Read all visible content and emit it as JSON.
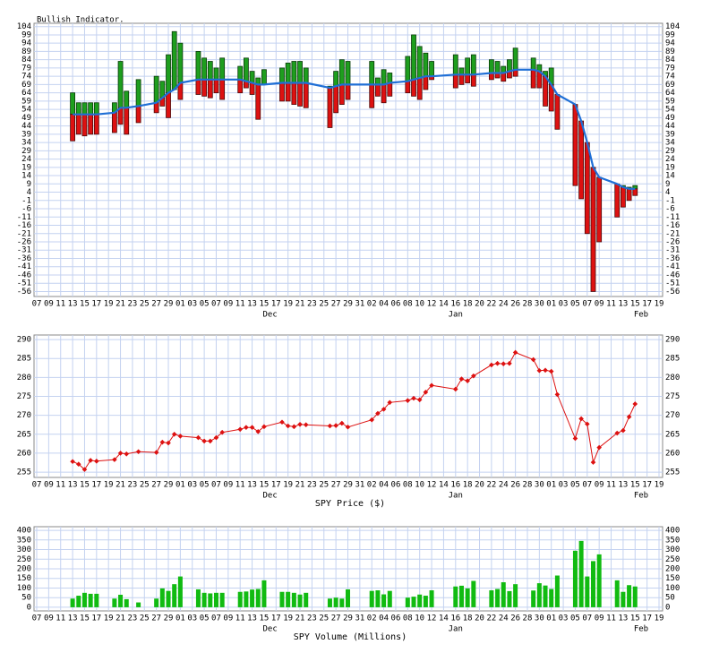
{
  "chart_data": [
    {
      "type": "rangebar",
      "title": "Bullish Indicator.",
      "categories": [
        "07",
        null,
        "09",
        null,
        "11",
        null,
        "13",
        null,
        "15",
        null,
        "17",
        null,
        "19",
        null,
        "21",
        null,
        "23",
        null,
        "25",
        null,
        "27",
        null,
        "29",
        null,
        "01",
        null,
        "03",
        null,
        "05",
        null,
        "07",
        null,
        "09",
        null,
        "11",
        null,
        "13",
        null,
        "15",
        null,
        "17",
        null,
        "19",
        null,
        "21",
        null,
        "23",
        null,
        "25",
        null,
        "27",
        null,
        "29",
        null,
        "31",
        null,
        "02",
        null,
        "04",
        null,
        "06",
        null,
        "08",
        null,
        "10",
        null,
        "12",
        null,
        "14",
        null,
        "16",
        null,
        "18",
        null,
        "20",
        null,
        "22",
        null,
        "24",
        null,
        "26",
        null,
        "28",
        null,
        "30",
        null,
        "01",
        null,
        "03",
        null,
        "05",
        null,
        "07",
        null,
        "09",
        null,
        "11",
        null,
        "13",
        null,
        "15",
        null,
        "17",
        null,
        "19"
      ],
      "month_labels": [
        "Dec",
        "Jan",
        "Feb"
      ],
      "line_color": "#1f6fd6",
      "up_color": "#1e9e1e",
      "down_color": "#dd1111",
      "line_values": [
        null,
        null,
        null,
        null,
        null,
        null,
        51,
        51,
        51,
        51,
        51,
        null,
        null,
        52,
        55,
        55,
        null,
        56,
        null,
        null,
        58,
        61,
        64,
        66,
        70,
        null,
        null,
        72,
        72,
        72,
        72,
        72,
        null,
        null,
        72,
        71,
        70,
        69,
        69,
        null,
        null,
        70,
        70,
        70,
        70,
        70,
        null,
        null,
        null,
        67,
        68,
        69,
        69,
        null,
        null,
        null,
        69,
        69,
        69,
        70,
        null,
        null,
        71,
        72,
        73,
        74,
        74,
        null,
        null,
        null,
        75,
        75,
        75,
        75,
        null,
        null,
        76,
        76,
        76,
        77,
        78,
        null,
        null,
        78,
        77,
        74,
        69,
        63,
        null,
        null,
        57,
        47,
        34,
        19,
        13,
        null,
        null,
        9,
        7,
        6,
        6,
        null,
        null,
        null,
        null
      ],
      "high_values": [
        null,
        null,
        null,
        null,
        null,
        null,
        64,
        58,
        58,
        58,
        58,
        null,
        null,
        58,
        83,
        65,
        null,
        72,
        null,
        null,
        74,
        71,
        87,
        101,
        94,
        null,
        null,
        89,
        85,
        83,
        79,
        85,
        null,
        null,
        80,
        85,
        77,
        73,
        78,
        null,
        null,
        79,
        82,
        83,
        83,
        79,
        null,
        null,
        null,
        68,
        77,
        84,
        83,
        null,
        null,
        null,
        83,
        73,
        78,
        76,
        null,
        null,
        86,
        99,
        92,
        88,
        83,
        null,
        null,
        null,
        87,
        79,
        85,
        87,
        null,
        null,
        84,
        83,
        80,
        84,
        91,
        null,
        null,
        85,
        81,
        77,
        79,
        63,
        null,
        null,
        57,
        47,
        34,
        19,
        13,
        null,
        null,
        9,
        8,
        7,
        8,
        null,
        null,
        null,
        null
      ],
      "low_values": [
        null,
        null,
        null,
        null,
        null,
        null,
        35,
        39,
        38,
        39,
        39,
        null,
        null,
        40,
        45,
        39,
        null,
        46,
        null,
        null,
        52,
        56,
        49,
        66,
        60,
        null,
        null,
        63,
        62,
        61,
        64,
        60,
        null,
        null,
        64,
        67,
        63,
        48,
        69,
        null,
        null,
        59,
        59,
        57,
        56,
        55,
        null,
        null,
        null,
        43,
        52,
        57,
        60,
        null,
        null,
        null,
        55,
        62,
        58,
        62,
        null,
        null,
        64,
        62,
        60,
        66,
        72,
        null,
        null,
        null,
        67,
        69,
        70,
        68,
        null,
        null,
        72,
        73,
        71,
        73,
        74,
        null,
        null,
        67,
        67,
        56,
        53,
        42,
        null,
        null,
        8,
        0,
        -21,
        -56,
        -26,
        null,
        null,
        -11,
        -5,
        -1,
        2,
        null,
        null,
        null,
        null
      ],
      "ylim": [
        -59,
        106
      ],
      "yticks": [
        -56,
        -51,
        -46,
        -41,
        -36,
        -31,
        -26,
        -21,
        -16,
        -11,
        -6,
        -1,
        4,
        9,
        14,
        19,
        24,
        29,
        34,
        39,
        44,
        49,
        54,
        59,
        64,
        69,
        74,
        79,
        84,
        89,
        94,
        99,
        104
      ],
      "grid": true
    },
    {
      "type": "line",
      "x_label": "SPY Price ($)",
      "color": "#dd1111",
      "categories": [
        "07",
        null,
        "09",
        null,
        "11",
        null,
        "13",
        null,
        "15",
        null,
        "17",
        null,
        "19",
        null,
        "21",
        null,
        "23",
        null,
        "25",
        null,
        "27",
        null,
        "29",
        null,
        "01",
        null,
        "03",
        null,
        "05",
        null,
        "07",
        null,
        "09",
        null,
        "11",
        null,
        "13",
        null,
        "15",
        null,
        "17",
        null,
        "19",
        null,
        "21",
        null,
        "23",
        null,
        "25",
        null,
        "27",
        null,
        "29",
        null,
        "31",
        null,
        "02",
        null,
        "04",
        null,
        "06",
        null,
        "08",
        null,
        "10",
        null,
        "12",
        null,
        "14",
        null,
        "16",
        null,
        "18",
        null,
        "20",
        null,
        "22",
        null,
        "24",
        null,
        "26",
        null,
        "28",
        null,
        "30",
        null,
        "01",
        null,
        "03",
        null,
        "05",
        null,
        "07",
        null,
        "09",
        null,
        "11",
        null,
        "13",
        null,
        "15",
        null,
        "17",
        null,
        "19"
      ],
      "month_labels": [
        "Dec",
        "Jan",
        "Feb"
      ],
      "values": [
        null,
        null,
        null,
        null,
        null,
        null,
        257.8,
        257.1,
        255.7,
        258.1,
        257.9,
        null,
        null,
        258.3,
        260.0,
        259.8,
        null,
        260.4,
        null,
        null,
        260.2,
        262.9,
        262.7,
        265.0,
        264.5,
        null,
        null,
        264.1,
        263.2,
        263.2,
        264.1,
        265.5,
        null,
        null,
        266.3,
        266.8,
        266.8,
        265.7,
        267.0,
        null,
        null,
        268.2,
        267.2,
        267.0,
        267.6,
        267.5,
        null,
        null,
        null,
        267.2,
        267.3,
        267.9,
        266.9,
        null,
        null,
        null,
        268.8,
        270.5,
        271.6,
        273.4,
        null,
        null,
        273.9,
        274.5,
        274.1,
        276.1,
        277.9,
        null,
        null,
        null,
        276.9,
        279.6,
        279.1,
        280.4,
        null,
        null,
        283.3,
        283.7,
        283.6,
        283.7,
        286.6,
        null,
        null,
        284.7,
        281.8,
        281.9,
        281.6,
        275.5,
        null,
        null,
        263.9,
        269.1,
        267.7,
        257.6,
        261.5,
        null,
        null,
        265.3,
        266.0,
        269.6,
        273.0,
        null,
        null,
        null,
        null
      ],
      "ylim": [
        253.6,
        291.2
      ],
      "yticks": [
        255,
        260,
        265,
        270,
        275,
        280,
        285,
        290
      ],
      "grid": true
    },
    {
      "type": "bar",
      "x_label": "SPY Volume (Millions)",
      "color": "#11bb11",
      "categories": [
        "07",
        null,
        "09",
        null,
        "11",
        null,
        "13",
        null,
        "15",
        null,
        "17",
        null,
        "19",
        null,
        "21",
        null,
        "23",
        null,
        "25",
        null,
        "27",
        null,
        "29",
        null,
        "01",
        null,
        "03",
        null,
        "05",
        null,
        "07",
        null,
        "09",
        null,
        "11",
        null,
        "13",
        null,
        "15",
        null,
        "17",
        null,
        "19",
        null,
        "21",
        null,
        "23",
        null,
        "25",
        null,
        "27",
        null,
        "29",
        null,
        "31",
        null,
        "02",
        null,
        "04",
        null,
        "06",
        null,
        "08",
        null,
        "10",
        null,
        "12",
        null,
        "14",
        null,
        "16",
        null,
        "18",
        null,
        "20",
        null,
        "22",
        null,
        "24",
        null,
        "26",
        null,
        "28",
        null,
        "30",
        null,
        "01",
        null,
        "03",
        null,
        "05",
        null,
        "07",
        null,
        "09",
        null,
        "11",
        null,
        "13",
        null,
        "15",
        null,
        "17",
        null,
        "19"
      ],
      "month_labels": [
        "Dec",
        "Jan",
        "Feb"
      ],
      "values": [
        null,
        null,
        null,
        null,
        null,
        null,
        45,
        60,
        75,
        70,
        70,
        null,
        null,
        45,
        65,
        42,
        null,
        25,
        null,
        null,
        45,
        98,
        85,
        120,
        160,
        null,
        null,
        93,
        75,
        72,
        75,
        75,
        null,
        null,
        80,
        82,
        92,
        95,
        140,
        null,
        null,
        80,
        80,
        75,
        66,
        75,
        null,
        null,
        null,
        45,
        50,
        45,
        93,
        null,
        null,
        null,
        85,
        88,
        67,
        85,
        null,
        null,
        50,
        55,
        66,
        60,
        88,
        null,
        null,
        null,
        108,
        112,
        98,
        137,
        null,
        null,
        88,
        95,
        130,
        84,
        120,
        null,
        null,
        87,
        125,
        113,
        95,
        165,
        null,
        null,
        294,
        345,
        160,
        240,
        275,
        null,
        null,
        140,
        80,
        115,
        108,
        null,
        null,
        null,
        null
      ],
      "ylim": [
        -19,
        419
      ],
      "yticks": [
        0,
        50,
        100,
        150,
        200,
        250,
        300,
        350,
        400
      ],
      "grid": true
    }
  ]
}
